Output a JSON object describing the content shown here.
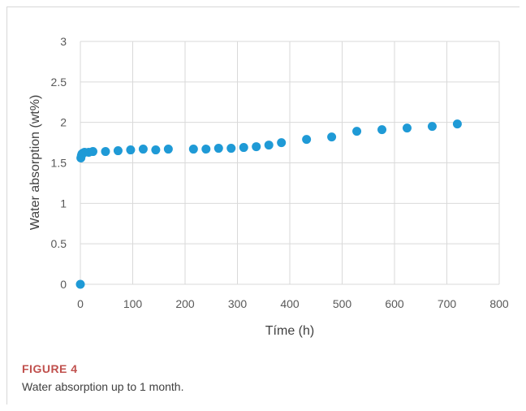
{
  "figure": {
    "label": "FIGURE 4",
    "caption": "Water absorption up to 1 month."
  },
  "chart_data": {
    "type": "scatter",
    "xlabel": "Tíme (h)",
    "ylabel": "Water absorption (wt%)",
    "xlim": [
      0,
      800
    ],
    "ylim": [
      0,
      3
    ],
    "xticks": [
      "0",
      "100",
      "200",
      "300",
      "400",
      "500",
      "600",
      "700",
      "800"
    ],
    "yticks": [
      "0",
      "0.5",
      "1",
      "1.5",
      "2",
      "2.5",
      "3"
    ],
    "grid": true,
    "marker_color": "#1f9ad6",
    "series": [
      {
        "points": [
          [
            0,
            0
          ],
          [
            1,
            1.56
          ],
          [
            2,
            1.59
          ],
          [
            3,
            1.61
          ],
          [
            5,
            1.62
          ],
          [
            8,
            1.63
          ],
          [
            16,
            1.63
          ],
          [
            24,
            1.64
          ],
          [
            48,
            1.64
          ],
          [
            72,
            1.65
          ],
          [
            96,
            1.66
          ],
          [
            120,
            1.67
          ],
          [
            144,
            1.66
          ],
          [
            168,
            1.67
          ],
          [
            216,
            1.67
          ],
          [
            240,
            1.67
          ],
          [
            264,
            1.68
          ],
          [
            288,
            1.68
          ],
          [
            312,
            1.69
          ],
          [
            336,
            1.7
          ],
          [
            360,
            1.72
          ],
          [
            384,
            1.75
          ],
          [
            432,
            1.79
          ],
          [
            480,
            1.82
          ],
          [
            528,
            1.89
          ],
          [
            576,
            1.91
          ],
          [
            624,
            1.93
          ],
          [
            672,
            1.95
          ],
          [
            720,
            1.98
          ]
        ]
      }
    ]
  }
}
